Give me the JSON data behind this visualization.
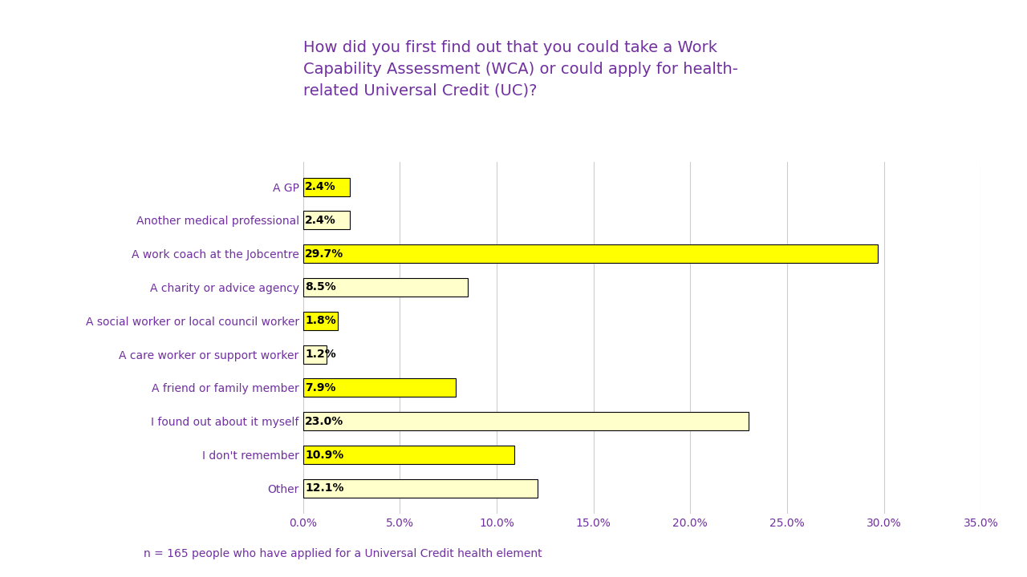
{
  "title": "How did you first find out that you could take a Work\nCapability Assessment (WCA) or could apply for health-\nrelated Universal Credit (UC)?",
  "title_color": "#7030A0",
  "title_fontsize": 14,
  "categories": [
    "A GP",
    "Another medical professional",
    "A work coach at the Jobcentre",
    "A charity or advice agency",
    "A social worker or local council worker",
    "A care worker or support worker",
    "A friend or family member",
    "I found out about it myself",
    "I don't remember",
    "Other"
  ],
  "values": [
    2.4,
    2.4,
    29.7,
    8.5,
    1.8,
    1.2,
    7.9,
    23.0,
    10.9,
    12.1
  ],
  "labels": [
    "2.4%",
    "2.4%",
    "29.7%",
    "8.5%",
    "1.8%",
    "1.2%",
    "7.9%",
    "23.0%",
    "10.9%",
    "12.1%"
  ],
  "bar_colors": [
    "#FFFF00",
    "#FFFFCC",
    "#FFFF00",
    "#FFFFCC",
    "#FFFF00",
    "#FFFFCC",
    "#FFFF00",
    "#FFFFCC",
    "#FFFF00",
    "#FFFFCC"
  ],
  "bar_edgecolor": "#000000",
  "label_color": "#000000",
  "label_fontsize": 10,
  "tick_color": "#7030A0",
  "tick_fontsize": 10,
  "xlim": [
    0,
    35
  ],
  "xticks": [
    0,
    5,
    10,
    15,
    20,
    25,
    30,
    35
  ],
  "xtick_labels": [
    "0.0%",
    "5.0%",
    "10.0%",
    "15.0%",
    "20.0%",
    "25.0%",
    "30.0%",
    "35.0%"
  ],
  "grid_color": "#CCCCCC",
  "background_color": "#FFFFFF",
  "footnote": "n = 165 people who have applied for a Universal Credit health element",
  "footnote_color": "#7030A0",
  "footnote_fontsize": 10
}
